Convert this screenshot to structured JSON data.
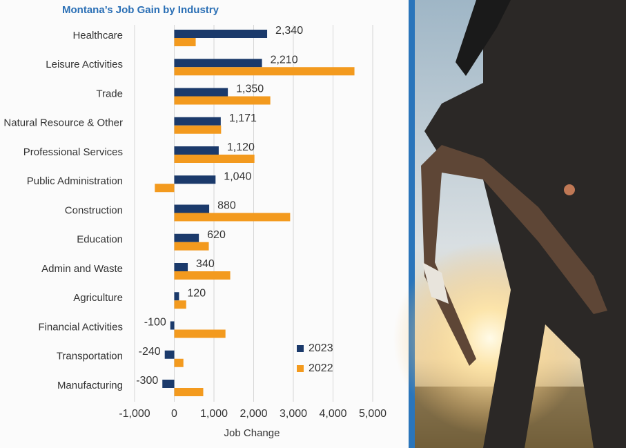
{
  "chart_data": {
    "type": "hbar",
    "title": "Montana’s Job Gain by Industry",
    "xlabel": "Job Change",
    "categories": [
      "Healthcare",
      "Leisure Activities",
      "Trade",
      "Natural Resource & Other",
      "Professional Services",
      "Public Administration",
      "Construction",
      "Education",
      "Admin and Waste",
      "Agriculture",
      "Financial Activities",
      "Transportation",
      "Manufacturing"
    ],
    "series": [
      {
        "name": "2023",
        "color": "#1b3a6b",
        "values": [
          2340,
          2210,
          1350,
          1171,
          1120,
          1040,
          880,
          620,
          340,
          120,
          -100,
          -240,
          -300
        ],
        "value_labels": [
          "2,340",
          "2,210",
          "1,350",
          "1,171",
          "1,120",
          "1,040",
          "880",
          "620",
          "340",
          "120",
          "-100",
          "-240",
          "-300"
        ]
      },
      {
        "name": "2022",
        "color": "#f39a1e",
        "values": [
          540,
          4540,
          2420,
          1180,
          2020,
          -490,
          2920,
          870,
          1410,
          300,
          1290,
          230,
          730
        ]
      }
    ],
    "xlim": [
      -1000,
      5000
    ],
    "xticks": [
      {
        "value": -1000,
        "label": "-1,000"
      },
      0,
      {
        "value": 1000,
        "label": "1,000"
      },
      {
        "value": 2000,
        "label": "2,000"
      },
      {
        "value": 3000,
        "label": "3,000"
      },
      {
        "value": 4000,
        "label": "4,000"
      },
      {
        "value": 5000,
        "label": "5,000"
      }
    ],
    "grid": true,
    "legend": "lower right"
  }
}
